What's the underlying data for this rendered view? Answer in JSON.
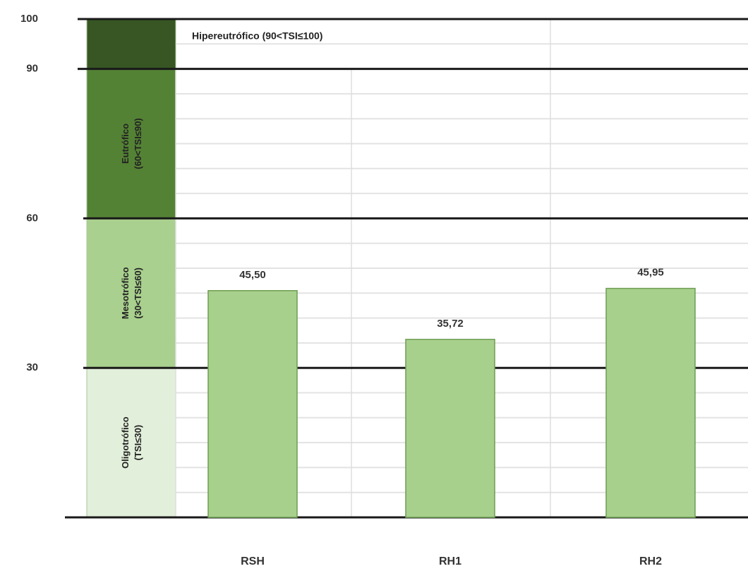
{
  "chart_data": {
    "type": "bar",
    "categories": [
      "RSH",
      "RH1",
      "RH2"
    ],
    "values": [
      45.5,
      35.72,
      45.95
    ],
    "value_labels": [
      "45,50",
      "35,72",
      "45,95"
    ],
    "ylim": [
      0,
      100
    ],
    "y_ticks": [
      {
        "value": 100,
        "label": "100"
      },
      {
        "value": 90,
        "label": "90"
      },
      {
        "value": 60,
        "label": "60"
      },
      {
        "value": 30,
        "label": "30"
      }
    ],
    "grid": true,
    "bar_color": "#a8d08d",
    "bar_border_color": "#6e9e52",
    "bands": [
      {
        "from": 0,
        "to": 30,
        "line1": "Oligotrófico",
        "line2": "(TSI≤30)",
        "color": "#e2efda"
      },
      {
        "from": 30,
        "to": 60,
        "line1": "Mesotrófico",
        "line2": "(30<TSI≤60)",
        "color": "#a9d08e"
      },
      {
        "from": 60,
        "to": 90,
        "line1": "Eutrófico",
        "line2": "(60<TSI≤90)",
        "color": "#548235"
      },
      {
        "from": 90,
        "to": 100,
        "label": "Hipereutrófico  (90<TSI≤100)",
        "color": "#375623"
      }
    ]
  }
}
